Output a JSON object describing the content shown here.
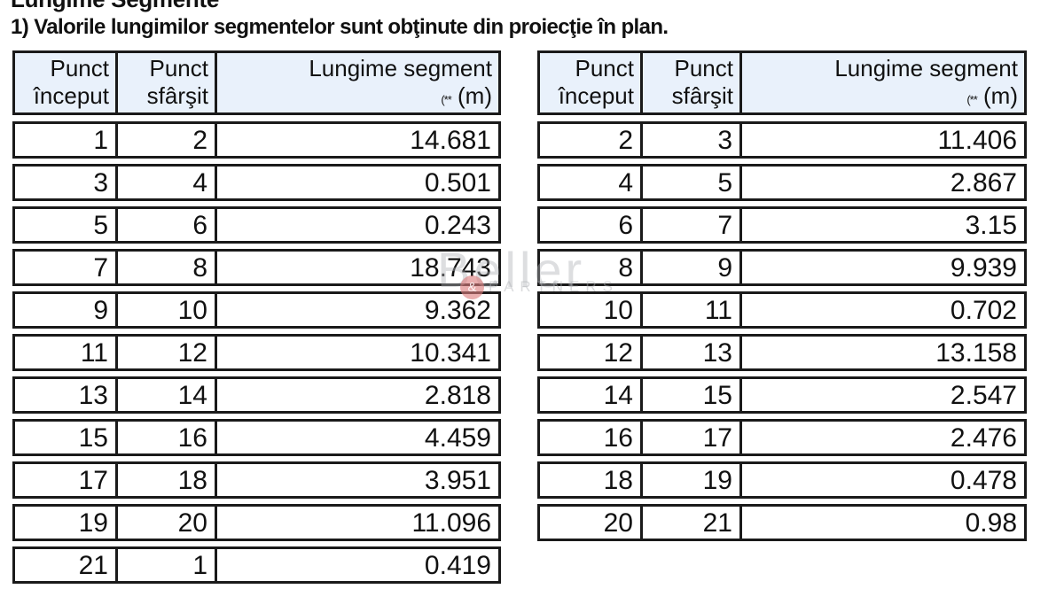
{
  "page": {
    "title": "Lungime Segmente",
    "note": "1) Valorile lungimilor segmentelor sunt obţinute din proiecţie în plan."
  },
  "headers": {
    "start_line1": "Punct",
    "start_line2": "început",
    "end_line1": "Punct",
    "end_line2": "sfârşit",
    "length_line1": "Lungime segment",
    "length_footnote": "(**",
    "length_unit": "(m)"
  },
  "left_table": {
    "rows": [
      {
        "start": "1",
        "end": "2",
        "length": "14.681"
      },
      {
        "start": "3",
        "end": "4",
        "length": "0.501"
      },
      {
        "start": "5",
        "end": "6",
        "length": "0.243"
      },
      {
        "start": "7",
        "end": "8",
        "length": "18.743"
      },
      {
        "start": "9",
        "end": "10",
        "length": "9.362"
      },
      {
        "start": "11",
        "end": "12",
        "length": "10.341"
      },
      {
        "start": "13",
        "end": "14",
        "length": "2.818"
      },
      {
        "start": "15",
        "end": "16",
        "length": "4.459"
      },
      {
        "start": "17",
        "end": "18",
        "length": "3.951"
      },
      {
        "start": "19",
        "end": "20",
        "length": "11.096"
      },
      {
        "start": "21",
        "end": "1",
        "length": "0.419"
      }
    ]
  },
  "right_table": {
    "rows": [
      {
        "start": "2",
        "end": "3",
        "length": "11.406"
      },
      {
        "start": "4",
        "end": "5",
        "length": "2.867"
      },
      {
        "start": "6",
        "end": "7",
        "length": "3.15"
      },
      {
        "start": "8",
        "end": "9",
        "length": "9.939"
      },
      {
        "start": "10",
        "end": "11",
        "length": "0.702"
      },
      {
        "start": "12",
        "end": "13",
        "length": "13.158"
      },
      {
        "start": "14",
        "end": "15",
        "length": "2.547"
      },
      {
        "start": "16",
        "end": "17",
        "length": "2.476"
      },
      {
        "start": "18",
        "end": "19",
        "length": "0.478"
      },
      {
        "start": "20",
        "end": "21",
        "length": "0.98"
      }
    ]
  },
  "watermark": {
    "text": "Beller",
    "subtext": "PARTNERS",
    "dot_glyph": "&"
  },
  "colors": {
    "header_bg": "#e9f1fb",
    "border": "#1a1a1a",
    "watermark_gray": "#adb0b4",
    "watermark_red": "#db7d7d"
  }
}
